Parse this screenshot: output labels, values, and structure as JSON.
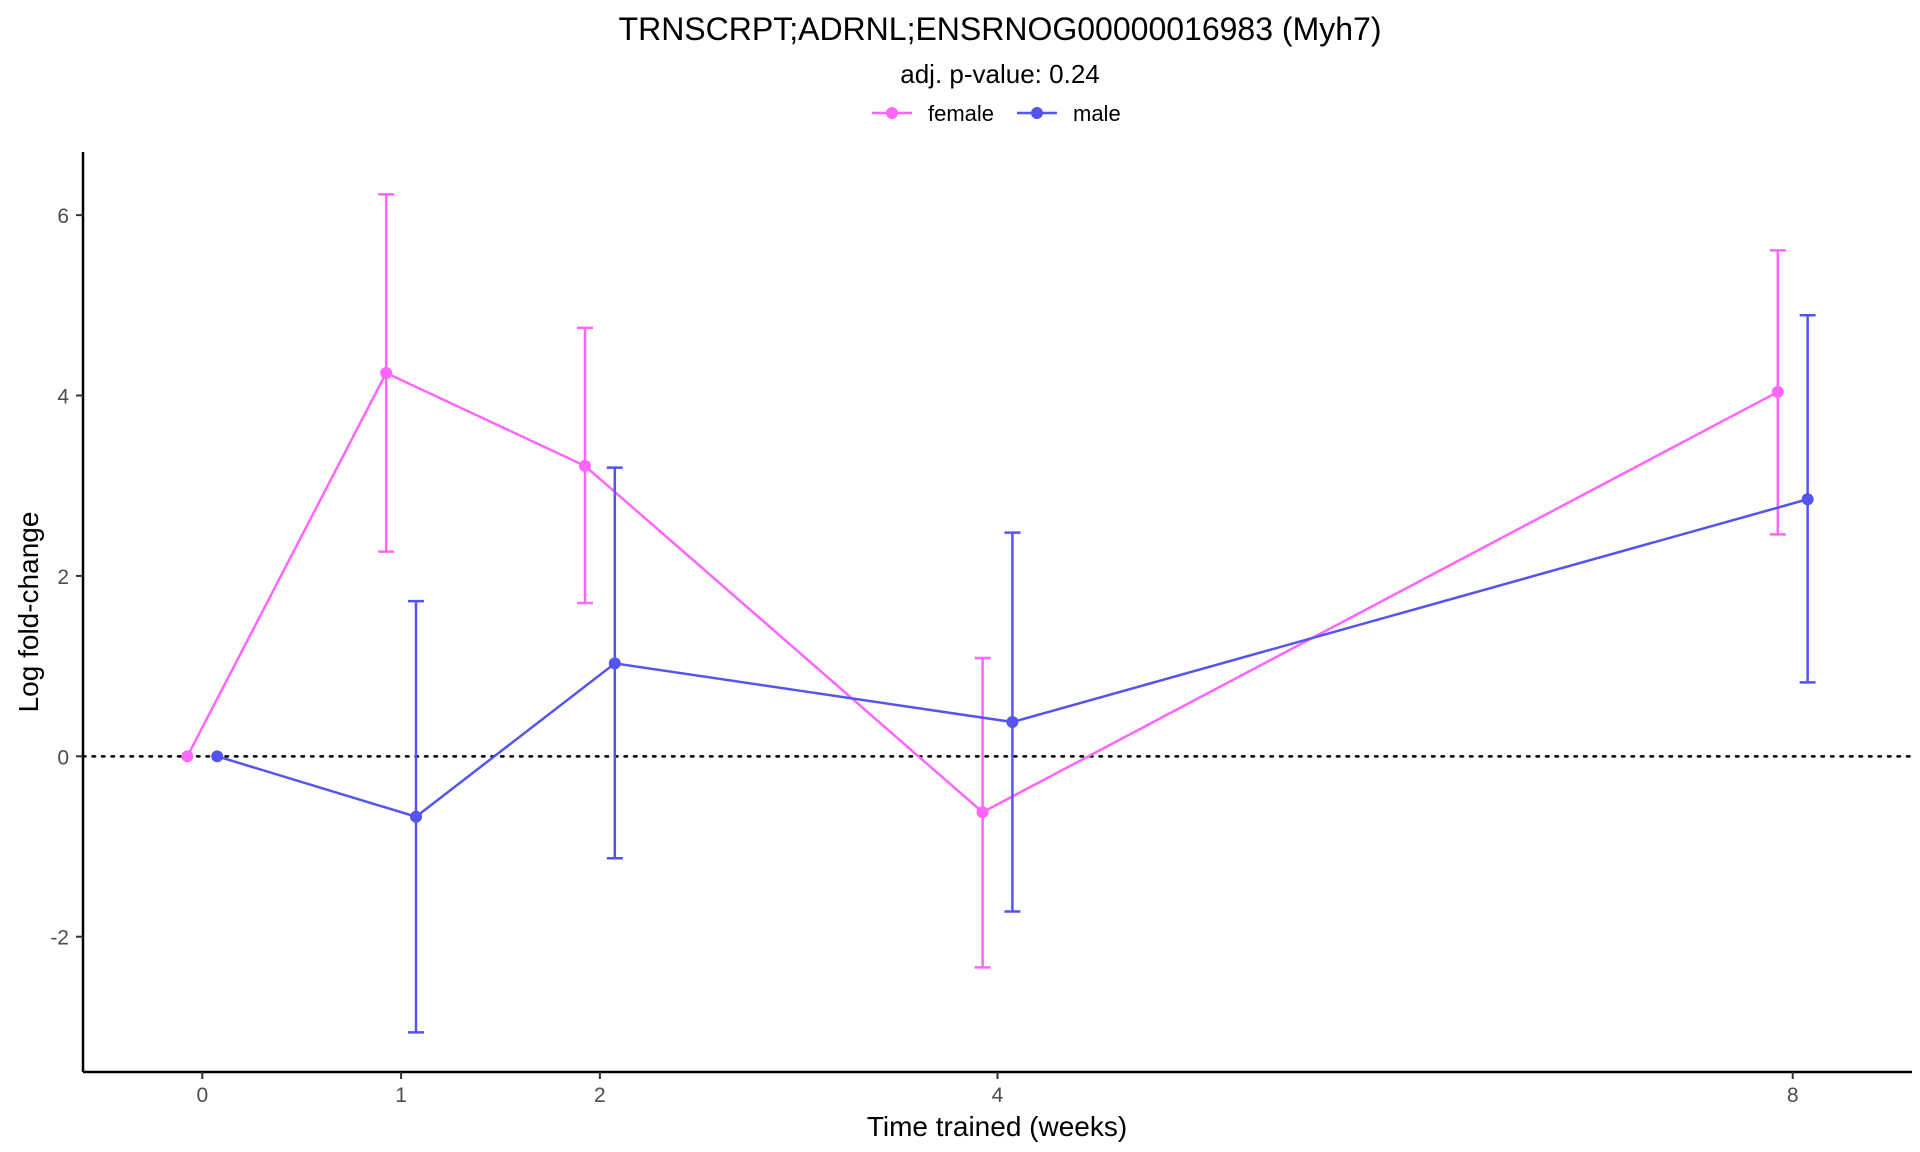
{
  "chart_data": {
    "type": "line",
    "title": "TRNSCRPT;ADRNL;ENSRNOG00000016983 (Myh7)",
    "subtitle": "adj. p-value: 0.24",
    "xlabel": "Time trained (weeks)",
    "ylabel": "Log fold-change",
    "x_ticks": [
      0,
      1,
      2,
      4,
      8
    ],
    "y_ticks": [
      -2,
      0,
      2,
      4,
      6
    ],
    "xlim": [
      -0.6,
      8.6
    ],
    "ylim": [
      -3.5,
      6.7
    ],
    "reference_line": {
      "y": 0,
      "style": "dotted"
    },
    "legend_position": "top",
    "series": [
      {
        "name": "female",
        "color": "#ff66ff",
        "x": [
          0,
          1,
          2,
          4,
          8
        ],
        "y": [
          0.0,
          4.25,
          3.22,
          -0.62,
          4.04
        ],
        "err_low": [
          0.0,
          2.27,
          1.7,
          -2.34,
          2.46
        ],
        "err_high": [
          0.0,
          6.23,
          4.75,
          1.09,
          5.61
        ]
      },
      {
        "name": "male",
        "color": "#5555ee",
        "x": [
          0,
          1,
          2,
          4,
          8
        ],
        "y": [
          0.0,
          -0.67,
          1.03,
          0.38,
          2.85
        ],
        "err_low": [
          0.0,
          -3.06,
          -1.13,
          -1.72,
          0.82
        ],
        "err_high": [
          0.0,
          1.72,
          3.2,
          2.48,
          4.89
        ]
      }
    ]
  }
}
